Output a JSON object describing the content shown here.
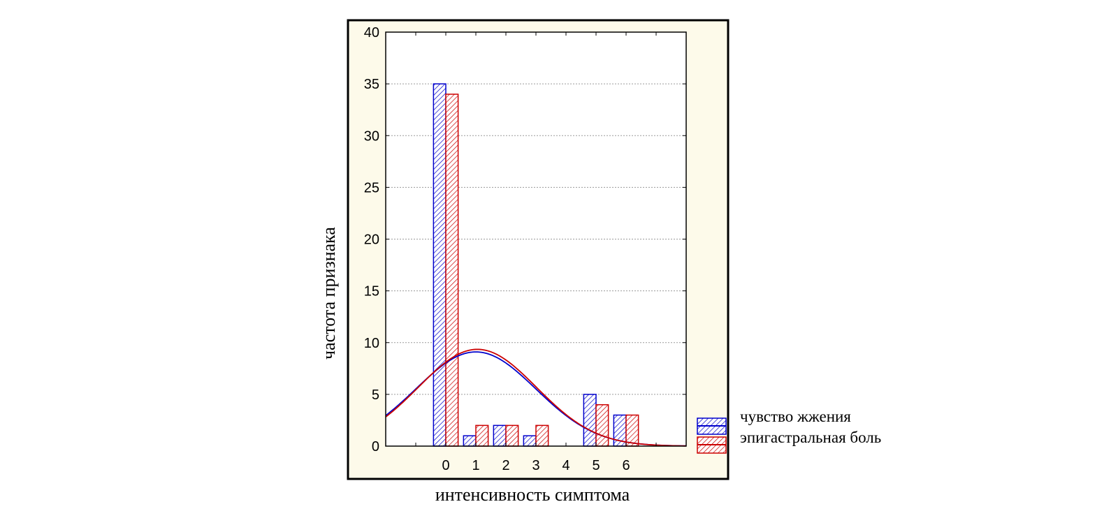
{
  "chart_data": {
    "type": "bar",
    "title": "",
    "xlabel": "интенсивность симптома",
    "ylabel": "частота признака",
    "categories": [
      "0",
      "1",
      "2",
      "3",
      "4",
      "5",
      "6"
    ],
    "xlim": [
      -2,
      8
    ],
    "ylim": [
      0,
      40
    ],
    "yticks": [
      "0",
      "5",
      "10",
      "15",
      "20",
      "25",
      "30",
      "35",
      "40"
    ],
    "grid": true,
    "legend_position": "right-bottom",
    "series": [
      {
        "name": "чувство жжения",
        "color": "#0000cc",
        "values": [
          35,
          1,
          2,
          1,
          0,
          5,
          3
        ],
        "normal_fit": {
          "mean": 1.0,
          "sd": 2.0,
          "peak": 9.1
        }
      },
      {
        "name": "эпигастральная боль",
        "color": "#cc0000",
        "values": [
          34,
          2,
          2,
          2,
          0,
          4,
          3
        ],
        "normal_fit": {
          "mean": 1.05,
          "sd": 1.97,
          "peak": 9.35
        }
      }
    ],
    "colors": {
      "frame_background": "#fdfaea",
      "plot_background": "#ffffff",
      "grid": "#9a9a9a"
    }
  }
}
